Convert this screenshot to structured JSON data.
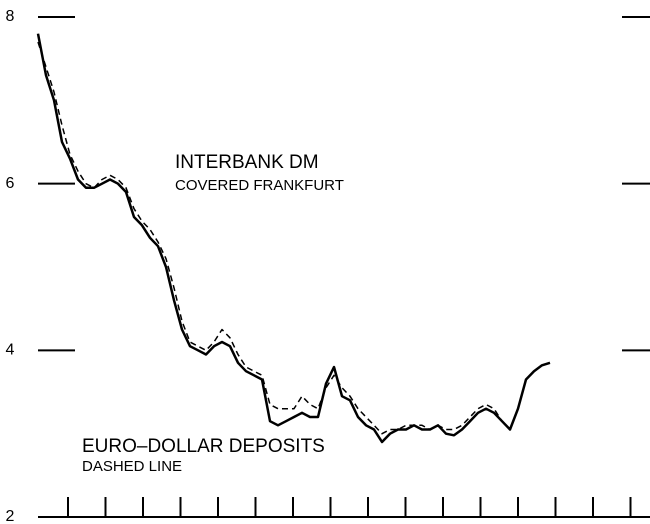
{
  "chart_data": {
    "type": "line",
    "annotations": [
      "INTERBANK DM",
      "COVERED FRANKFURT",
      "EURO–DOLLAR DEPOSITS",
      "DASHED LINE"
    ],
    "categories": [
      null,
      null,
      null,
      null,
      null,
      null,
      null,
      null,
      null,
      null,
      null,
      null,
      null,
      null,
      null,
      null,
      null,
      null,
      null,
      null,
      null,
      null,
      null,
      null,
      null,
      null,
      null,
      null,
      null,
      null,
      null,
      null,
      null,
      null,
      null,
      null,
      null,
      null,
      null,
      null,
      null,
      null,
      null,
      null,
      null,
      null,
      null,
      null,
      null,
      null,
      null,
      null,
      null,
      null,
      null,
      null,
      null,
      null,
      null,
      null,
      null,
      null,
      null,
      null,
      null
    ],
    "series": [
      {
        "color": "#000000",
        "dash": false,
        "values": [
          7.8,
          7.3,
          7.0,
          6.5,
          6.3,
          6.05,
          5.95,
          5.95,
          6.0,
          6.05,
          6.0,
          5.9,
          5.6,
          5.5,
          5.35,
          5.25,
          5.0,
          4.6,
          4.25,
          4.05,
          4.0,
          3.95,
          4.05,
          4.1,
          4.05,
          3.85,
          3.75,
          3.7,
          3.65,
          3.15,
          3.1,
          3.15,
          3.2,
          3.25,
          3.2,
          3.2,
          3.6,
          3.8,
          3.45,
          3.4,
          3.2,
          3.1,
          3.05,
          2.9,
          3.0,
          3.05,
          3.05,
          3.1,
          3.05,
          3.05,
          3.1,
          3.0,
          2.98,
          3.05,
          3.15,
          3.25,
          3.3,
          3.25,
          3.15,
          3.05,
          3.3,
          3.65,
          3.75,
          3.82,
          3.85
        ]
      },
      {
        "color": "#000000",
        "dash": true,
        "values": [
          7.7,
          7.4,
          7.1,
          6.7,
          6.35,
          6.15,
          6.0,
          5.95,
          6.05,
          6.1,
          6.05,
          5.95,
          5.7,
          5.55,
          5.45,
          5.3,
          5.1,
          4.75,
          4.35,
          4.1,
          4.05,
          4.0,
          4.1,
          4.25,
          4.15,
          3.95,
          3.8,
          3.75,
          3.7,
          3.35,
          3.3,
          3.3,
          3.3,
          3.45,
          3.35,
          3.3,
          3.55,
          3.7,
          3.55,
          3.45,
          3.3,
          3.2,
          3.1,
          3.0,
          3.05,
          3.05,
          3.1,
          3.1,
          3.1,
          3.05,
          3.1,
          3.05,
          3.05,
          3.1,
          3.2,
          3.3,
          3.35,
          3.3,
          3.15,
          null,
          null,
          null,
          null,
          null,
          null
        ]
      }
    ],
    "ylim": [
      2,
      8
    ],
    "yticks": [
      2,
      4,
      6,
      8
    ]
  }
}
